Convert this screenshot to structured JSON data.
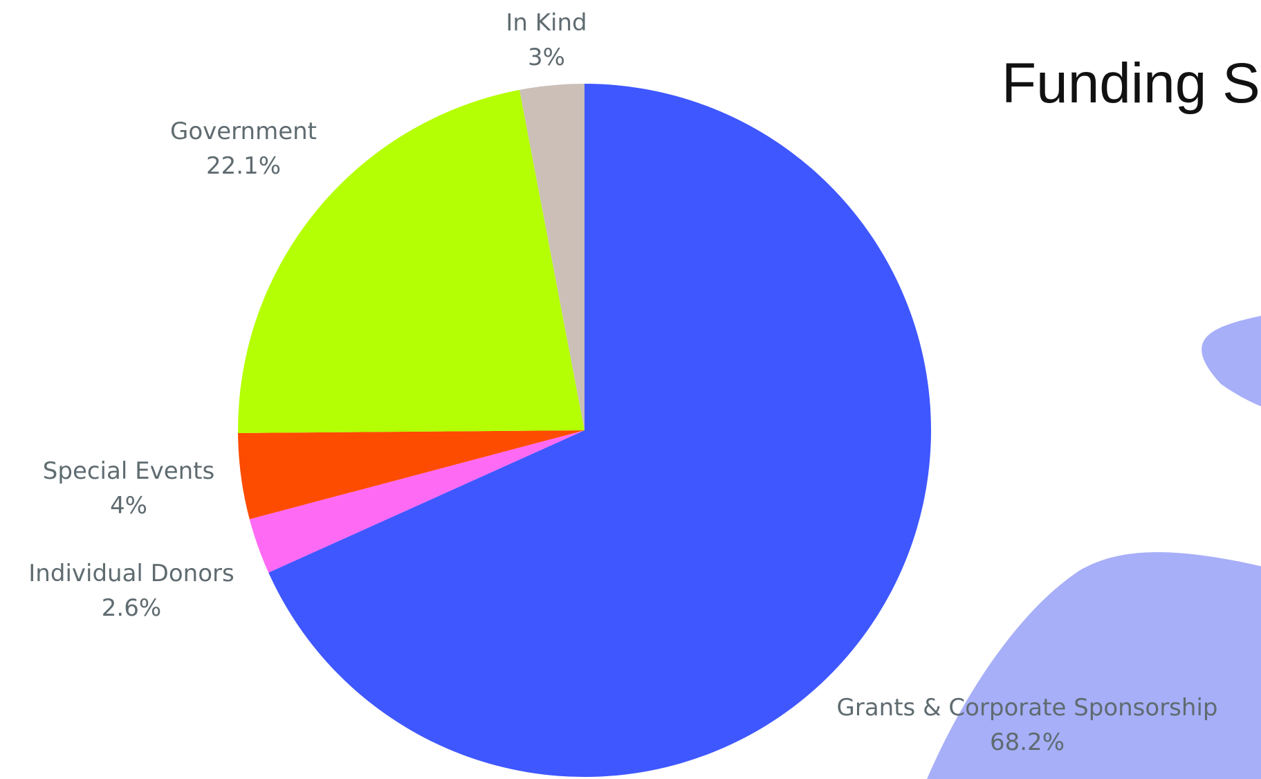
{
  "title": "Funding Sources",
  "chart_data": {
    "type": "pie",
    "title": "Funding Sources",
    "start": "12 o'clock",
    "direction": "clockwise",
    "slices": [
      {
        "label": "Grants & Corporate Sponsorship",
        "value": 68.2,
        "value_label": "68.2%",
        "color": "#3f57ff"
      },
      {
        "label": "Individual Donors",
        "value": 2.6,
        "value_label": "2.6%",
        "color": "#ff6af5"
      },
      {
        "label": "Special Events",
        "value": 4,
        "value_label": "4%",
        "color": "#fd4b00"
      },
      {
        "label": "Government",
        "value": 22.1,
        "value_label": "22.1%",
        "color": "#b5ff05"
      },
      {
        "label": "In Kind",
        "value": 3,
        "value_label": "3%",
        "color": "#cbbfb8"
      }
    ]
  },
  "background": {
    "blob_color": "#a7aff8"
  }
}
